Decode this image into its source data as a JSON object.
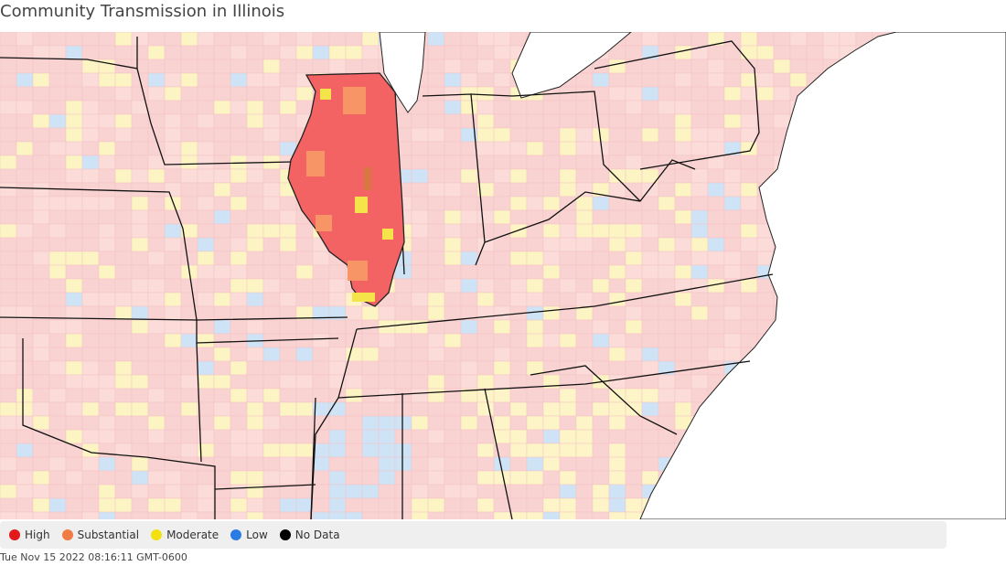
{
  "title": "Community Transmission in Illinois",
  "legend": [
    {
      "label": "High",
      "color": "#e31a1c"
    },
    {
      "label": "Substantial",
      "color": "#f07b45"
    },
    {
      "label": "Moderate",
      "color": "#f3e00f"
    },
    {
      "label": "Low",
      "color": "#2c7be5"
    },
    {
      "label": "No Data",
      "color": "#000000"
    }
  ],
  "timestamp": "Tue Nov 15 2022 08:16:11 GMT-0600"
}
